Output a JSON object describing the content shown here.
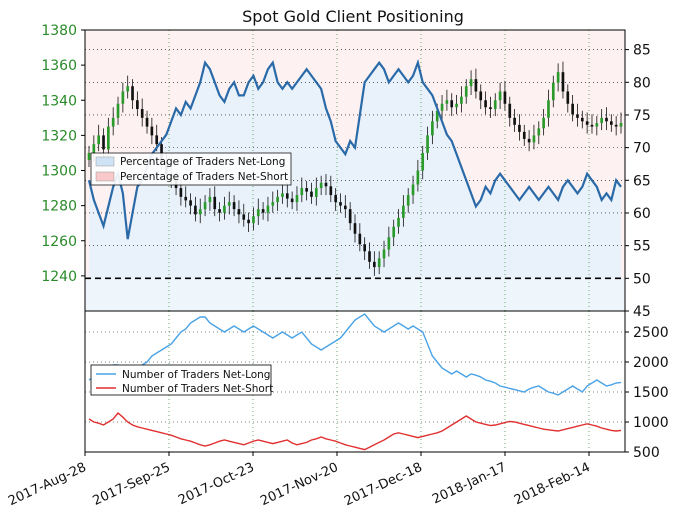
{
  "chart_data": {
    "type": "line",
    "title": "Spot Gold Client Positioning",
    "x_tick_labels": [
      "2017-Aug-28",
      "2017-Sep-25",
      "2017-Oct-23",
      "2017-Nov-20",
      "2017-Dec-18",
      "2018-Jan-17",
      "2018-Feb-14"
    ],
    "x_range": [
      "2017-08-28",
      "2018-02-24"
    ],
    "top_panel": {
      "price_axis": {
        "side": "left",
        "color": "#2a8a2a",
        "range": [
          1220,
          1380
        ],
        "ticks": [
          1240,
          1260,
          1280,
          1300,
          1320,
          1340,
          1360,
          1380
        ]
      },
      "percent_axis": {
        "side": "right",
        "range": [
          45,
          88
        ],
        "ticks": [
          45,
          50,
          55,
          60,
          65,
          70,
          75,
          80,
          85
        ]
      },
      "legend": {
        "placement": "left",
        "entries": [
          {
            "label": "Percentage of Traders Net-Long",
            "color": "#cfe3f7"
          },
          {
            "label": "Percentage of Traders Net-Short",
            "color": "#f9c8c8"
          }
        ]
      },
      "reference_line": {
        "value": 50,
        "style": "dashed",
        "color": "#000000"
      },
      "grid": "dotted",
      "series_percent_long": {
        "color": "#2a6aa8",
        "values": [
          65,
          62,
          60,
          58,
          61,
          64,
          66,
          63,
          56,
          60,
          64,
          65,
          67,
          69,
          70,
          71,
          72,
          74,
          76,
          75,
          77,
          76,
          78,
          80,
          83,
          82,
          80,
          78,
          77,
          79,
          80,
          78,
          78,
          80,
          81,
          79,
          80,
          82,
          83,
          80,
          79,
          80,
          79,
          80,
          81,
          82,
          81,
          80,
          79,
          76,
          74,
          71,
          70,
          69,
          71,
          70,
          75,
          80,
          81,
          82,
          83,
          82,
          80,
          81,
          82,
          81,
          80,
          81,
          83,
          80,
          79,
          78,
          76,
          74,
          72,
          71,
          69,
          67,
          65,
          63,
          61,
          62,
          64,
          63,
          65,
          66,
          65,
          64,
          63,
          62,
          63,
          64,
          63,
          62,
          63,
          64,
          63,
          62,
          64,
          65,
          64,
          63,
          64,
          66,
          65,
          64,
          62,
          63,
          62,
          65,
          64
        ]
      },
      "series_price_close": {
        "values": [
          1310,
          1315,
          1320,
          1312,
          1325,
          1330,
          1338,
          1345,
          1348,
          1340,
          1335,
          1330,
          1325,
          1320,
          1315,
          1305,
          1298,
          1295,
          1290,
          1285,
          1283,
          1280,
          1275,
          1278,
          1282,
          1285,
          1278,
          1276,
          1280,
          1282,
          1278,
          1275,
          1272,
          1270,
          1274,
          1278,
          1276,
          1280,
          1282,
          1285,
          1287,
          1284,
          1282,
          1286,
          1290,
          1288,
          1285,
          1290,
          1293,
          1291,
          1286,
          1282,
          1280,
          1278,
          1270,
          1264,
          1258,
          1254,
          1248,
          1245,
          1250,
          1255,
          1262,
          1268,
          1273,
          1280,
          1286,
          1292,
          1300,
          1310,
          1320,
          1328,
          1334,
          1338,
          1340,
          1336,
          1338,
          1342,
          1348,
          1352,
          1345,
          1340,
          1336,
          1335,
          1340,
          1345,
          1338,
          1330,
          1326,
          1322,
          1318,
          1316,
          1320,
          1324,
          1330,
          1340,
          1350,
          1356,
          1345,
          1338,
          1332,
          1330,
          1328,
          1326,
          1325,
          1327,
          1330,
          1328,
          1326,
          1325,
          1327
        ]
      }
    },
    "bottom_panel": {
      "axis": {
        "side": "right",
        "range": [
          500,
          2850
        ],
        "ticks": [
          500,
          1000,
          1500,
          2000,
          2500
        ]
      },
      "legend": {
        "placement": "left",
        "entries": [
          {
            "label": "Number of Traders Net-Long",
            "color": "#4aa3e6"
          },
          {
            "label": "Number of Traders Net-Short",
            "color": "#e03030"
          }
        ]
      },
      "series_net_long": {
        "color": "#4aa3e6",
        "values": [
          1700,
          1750,
          1800,
          1850,
          1900,
          1950,
          1950,
          1850,
          1800,
          1850,
          1900,
          1950,
          2000,
          2100,
          2150,
          2200,
          2250,
          2300,
          2400,
          2500,
          2550,
          2650,
          2700,
          2750,
          2750,
          2650,
          2600,
          2550,
          2500,
          2550,
          2600,
          2550,
          2500,
          2550,
          2600,
          2550,
          2500,
          2450,
          2400,
          2450,
          2500,
          2450,
          2400,
          2450,
          2500,
          2400,
          2300,
          2250,
          2200,
          2250,
          2300,
          2350,
          2400,
          2500,
          2600,
          2700,
          2750,
          2800,
          2700,
          2600,
          2550,
          2500,
          2550,
          2600,
          2650,
          2600,
          2550,
          2600,
          2550,
          2500,
          2300,
          2100,
          2000,
          1900,
          1850,
          1800,
          1850,
          1800,
          1750,
          1800,
          1780,
          1750,
          1700,
          1680,
          1650,
          1600,
          1580,
          1560,
          1540,
          1520,
          1500,
          1550,
          1580,
          1600,
          1550,
          1500,
          1480,
          1450,
          1500,
          1550,
          1600,
          1550,
          1500,
          1600,
          1650,
          1700,
          1650,
          1600,
          1620,
          1650,
          1660
        ]
      },
      "series_net_short": {
        "color": "#e03030",
        "values": [
          1050,
          1000,
          980,
          950,
          1000,
          1050,
          1150,
          1080,
          1000,
          950,
          920,
          900,
          880,
          860,
          840,
          820,
          800,
          780,
          750,
          720,
          700,
          680,
          650,
          620,
          600,
          620,
          650,
          680,
          700,
          680,
          660,
          640,
          620,
          650,
          680,
          700,
          680,
          660,
          640,
          660,
          680,
          700,
          650,
          620,
          640,
          660,
          700,
          720,
          750,
          720,
          700,
          680,
          650,
          620,
          600,
          580,
          560,
          540,
          580,
          620,
          660,
          700,
          750,
          800,
          820,
          800,
          780,
          760,
          740,
          760,
          780,
          800,
          820,
          850,
          900,
          950,
          1000,
          1050,
          1100,
          1050,
          1000,
          980,
          960,
          940,
          950,
          970,
          990,
          1010,
          1000,
          980,
          960,
          940,
          920,
          900,
          880,
          870,
          860,
          850,
          870,
          890,
          910,
          930,
          950,
          970,
          950,
          930,
          900,
          880,
          860,
          850,
          860
        ]
      }
    }
  }
}
